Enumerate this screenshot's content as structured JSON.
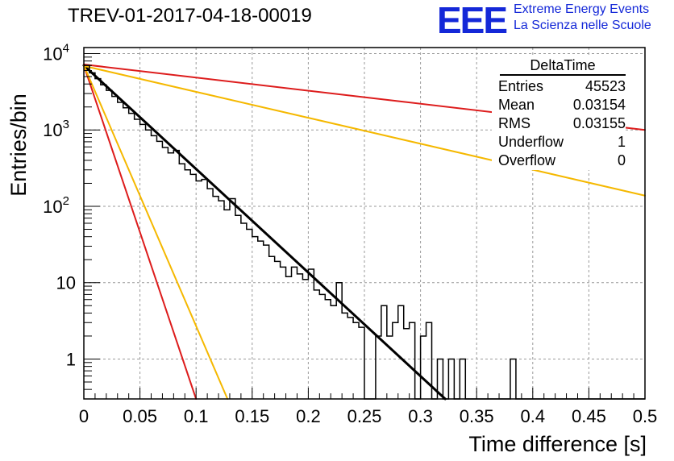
{
  "header": {
    "title": "TREV-01-2017-04-18-00019",
    "logo_text": "EEE",
    "logo_line1": "Extreme Energy Events",
    "logo_line2": "La Scienza nelle Scuole"
  },
  "stats_box": {
    "title": "DeltaTime",
    "rows": [
      {
        "label": "Entries",
        "value": "45523"
      },
      {
        "label": "Mean",
        "value": "0.03154"
      },
      {
        "label": "RMS",
        "value": "0.03155"
      },
      {
        "label": "Underflow",
        "value": "1"
      },
      {
        "label": "Overflow",
        "value": "0"
      }
    ]
  },
  "chart_data": {
    "type": "line",
    "title": "TREV-01-2017-04-18-00019",
    "xlabel": "Time difference [s]",
    "ylabel": "Entries/bin",
    "xlim": [
      0,
      0.5
    ],
    "ylim": [
      0.3,
      12000
    ],
    "y_scale": "log",
    "grid": true,
    "x_ticks": [
      "0",
      "0.05",
      "0.1",
      "0.15",
      "0.2",
      "0.25",
      "0.3",
      "0.35",
      "0.4",
      "0.45",
      "0.5"
    ],
    "y_ticks": [
      {
        "value": 1,
        "label": "1"
      },
      {
        "value": 10,
        "label": "10"
      },
      {
        "value": 100,
        "label": "10",
        "exp": "2"
      },
      {
        "value": 1000,
        "label": "10",
        "exp": "3"
      },
      {
        "value": 10000,
        "label": "10",
        "exp": "4"
      }
    ],
    "histogram": {
      "name": "DeltaTime",
      "color": "#000000",
      "bin_width": 0.005,
      "bin_start": 0,
      "values": [
        7000,
        5600,
        4700,
        3900,
        3300,
        2750,
        2300,
        1950,
        1650,
        1380,
        1180,
        1000,
        840,
        710,
        590,
        500,
        540,
        360,
        300,
        262,
        215,
        225,
        170,
        135,
        118,
        90,
        126,
        76,
        60,
        50,
        40,
        35,
        31,
        22,
        19,
        16,
        12,
        16,
        13,
        11,
        15,
        8,
        7,
        6,
        5,
        10,
        4,
        3.5,
        3,
        2.6,
        0,
        0.3,
        2,
        5,
        2,
        3,
        5,
        2.5,
        3,
        0.3,
        2,
        3,
        0.3,
        1,
        0.3,
        1,
        0.3,
        1,
        0.3,
        0.3,
        0.3,
        0.3,
        0.3,
        0.3,
        0.3,
        0.3,
        1,
        0.3,
        0.3,
        0.3,
        0.3,
        0.3,
        0.3,
        0.3,
        0.3,
        0.3,
        0.3,
        0.3,
        0.3,
        0.3,
        0.3,
        0.3,
        0.3,
        0.3,
        0.3,
        0.3,
        0.3,
        0.3,
        0.3,
        0.3
      ]
    },
    "fits": [
      {
        "color": "#000000",
        "x": [
          0,
          0.322
        ],
        "y": [
          7000,
          0.3
        ],
        "width": 3
      },
      {
        "color": "#dd1c1c",
        "x": [
          0,
          0.5
        ],
        "y": [
          7200,
          1000
        ],
        "width": 2
      },
      {
        "color": "#f5b800",
        "x": [
          0,
          0.5
        ],
        "y": [
          6900,
          138
        ],
        "width": 2
      },
      {
        "color": "#dd1c1c",
        "x": [
          0,
          0.1
        ],
        "y": [
          7000,
          0.3
        ],
        "width": 2
      },
      {
        "color": "#f5b800",
        "x": [
          0,
          0.128
        ],
        "y": [
          7000,
          0.3
        ],
        "width": 2
      }
    ]
  }
}
